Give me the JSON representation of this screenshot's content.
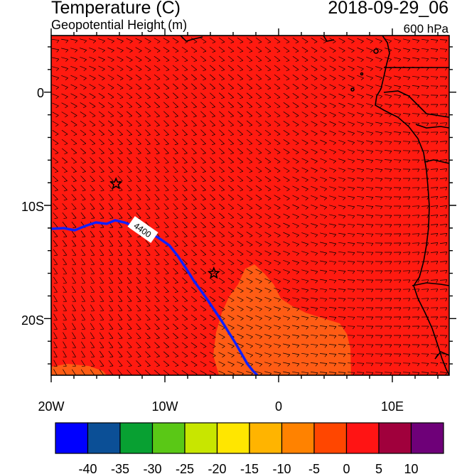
{
  "header": {
    "title": "Temperature (C)",
    "subtitle": "Geopotential Height (m)",
    "datetime": "2018-09-29_06",
    "level": "600 hPa"
  },
  "map": {
    "lon_range": [
      -20,
      15
    ],
    "lat_range": [
      -25,
      5
    ],
    "x_ticks": [
      "20W",
      "10W",
      "0",
      "10E"
    ],
    "y_ticks": [
      "0",
      "10S",
      "20S"
    ],
    "contour_label": "4400",
    "fill_colors": {
      "background_fill": "#ff1a10",
      "warm_patch": "#ff5c14",
      "contour_line": "#1020ff"
    },
    "markers": [
      {
        "type": "star",
        "lon": -14.3,
        "lat": -8.1
      },
      {
        "type": "star",
        "lon": -5.7,
        "lat": -16.0
      }
    ]
  },
  "colorbar": {
    "colors": [
      "#0000ff",
      "#0b4f96",
      "#08a032",
      "#5ac816",
      "#c8e600",
      "#ffe600",
      "#ffb400",
      "#ff8200",
      "#ff4600",
      "#ff1414",
      "#a0003c",
      "#6e0078"
    ],
    "labels": [
      "-40",
      "-35",
      "-30",
      "-25",
      "-20",
      "-15",
      "-10",
      "-5",
      "0",
      "5",
      "10"
    ]
  }
}
